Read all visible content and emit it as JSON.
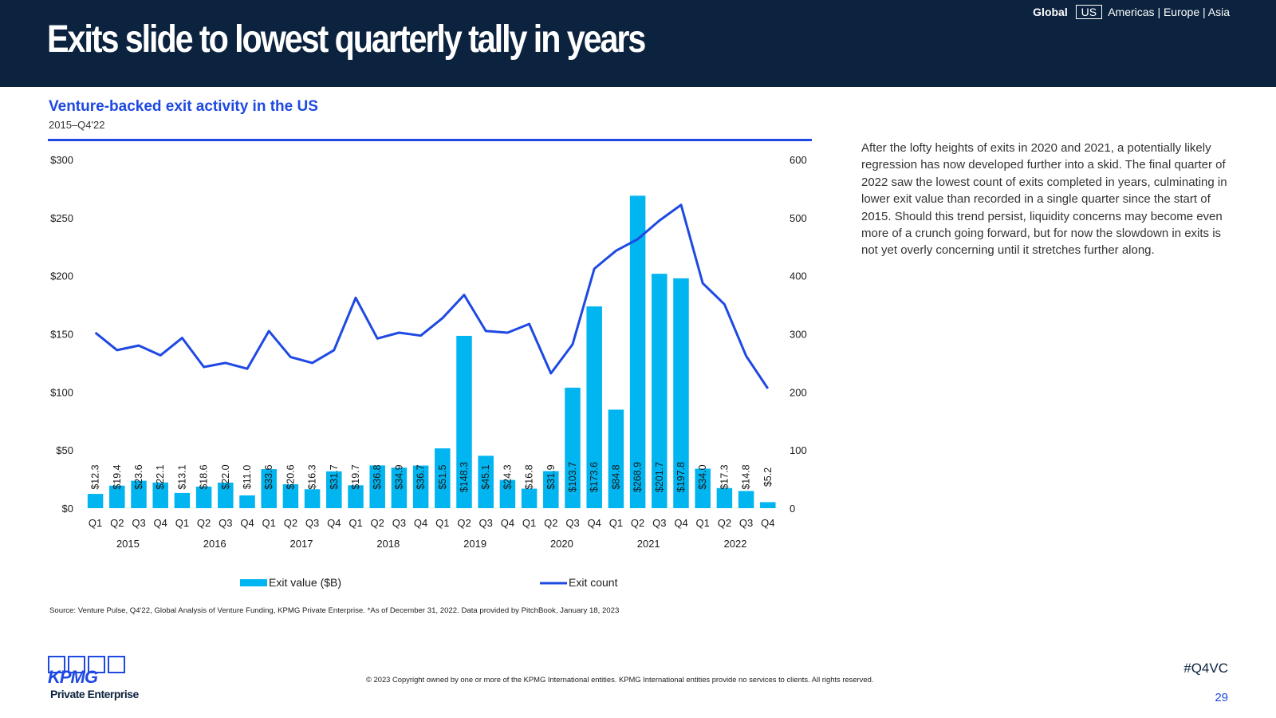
{
  "header": {
    "title": "Exits slide to lowest quarterly tally in years",
    "regions": {
      "global": "Global",
      "us": "US",
      "others": "Americas | Europe | Asia"
    }
  },
  "chart_meta": {
    "title": "Venture-backed exit activity in the US",
    "subtitle": "2015–Q4'22"
  },
  "side_text": "After the lofty heights of exits in 2020 and 2021, a potentially likely regression has now developed further into a skid. The final quarter of 2022 saw the lowest count of exits completed in years, culminating in lower exit value than recorded in a single quarter since the start of 2015. Should this trend persist, liquidity concerns may become even more of a crunch going forward, but for now the slowdown in exits is not yet overly concerning until it stretches further along.",
  "source": "Source: Venture Pulse, Q4'22, Global Analysis of Venture Funding, KPMG Private Enterprise. *As of December 31, 2022. Data provided by PitchBook, January 18, 2023",
  "footer": {
    "logo_word": "KPMG",
    "logo_sub": "Private Enterprise",
    "copyright": "© 2023 Copyright owned by one or more of the KPMG International entities. KPMG International entities provide no services to clients. All rights reserved.",
    "hashtag": "#Q4VC",
    "page": "29"
  },
  "colors": {
    "bar": "#00b5f0",
    "line": "#1e49e2",
    "header_bg": "#0c233f"
  },
  "chart_data": {
    "type": "bar",
    "categories": [
      "Q1",
      "Q2",
      "Q3",
      "Q4",
      "Q1",
      "Q2",
      "Q3",
      "Q4",
      "Q1",
      "Q2",
      "Q3",
      "Q4",
      "Q1",
      "Q2",
      "Q3",
      "Q4",
      "Q1",
      "Q2",
      "Q3",
      "Q4",
      "Q1",
      "Q2",
      "Q3",
      "Q4",
      "Q1",
      "Q2",
      "Q3",
      "Q4",
      "Q1",
      "Q2",
      "Q3",
      "Q4"
    ],
    "year_groups": [
      "2015",
      "2016",
      "2017",
      "2018",
      "2019",
      "2020",
      "2021",
      "2022"
    ],
    "series": [
      {
        "name": "Exit value ($B)",
        "type": "bar",
        "axis": "left",
        "values": [
          12.3,
          19.4,
          23.6,
          22.1,
          13.1,
          18.6,
          22.0,
          11.0,
          33.6,
          20.6,
          16.3,
          31.7,
          19.7,
          36.8,
          34.9,
          36.7,
          51.5,
          148.3,
          45.1,
          24.3,
          16.8,
          31.9,
          103.7,
          173.6,
          84.8,
          268.9,
          201.7,
          197.8,
          34.0,
          17.3,
          14.8,
          5.2
        ],
        "labels": [
          "$12.3",
          "$19.4",
          "$23.6",
          "$22.1",
          "$13.1",
          "$18.6",
          "$22.0",
          "$11.0",
          "$33.6",
          "$20.6",
          "$16.3",
          "$31.7",
          "$19.7",
          "$36.8",
          "$34.9",
          "$36.7",
          "$51.5",
          "$148.3",
          "$45.1",
          "$24.3",
          "$16.8",
          "$31.9",
          "$103.7",
          "$173.6",
          "$84.8",
          "$268.9",
          "$201.7",
          "$197.8",
          "$34.0",
          "$17.3",
          "$14.8",
          "$5.2"
        ]
      },
      {
        "name": "Exit count",
        "type": "line",
        "axis": "right",
        "values": [
          302,
          272,
          280,
          263,
          293,
          243,
          250,
          240,
          305,
          260,
          250,
          272,
          362,
          292,
          302,
          297,
          327,
          367,
          305,
          302,
          317,
          232,
          282,
          412,
          443,
          463,
          495,
          522,
          387,
          351,
          262,
          206
        ]
      }
    ],
    "y_left": {
      "min": 0,
      "max": 300,
      "ticks": [
        0,
        50,
        100,
        150,
        200,
        250,
        300
      ],
      "tick_labels": [
        "$0",
        "$50",
        "$100",
        "$150",
        "$200",
        "$250",
        "$300"
      ]
    },
    "y_right": {
      "min": 0,
      "max": 600,
      "ticks": [
        0,
        100,
        200,
        300,
        400,
        500,
        600
      ],
      "tick_labels": [
        "0",
        "100",
        "200",
        "300",
        "400",
        "500",
        "600"
      ]
    },
    "legend": {
      "position": "bottom",
      "items": [
        "Exit value ($B)",
        "Exit count"
      ]
    },
    "grid": false
  }
}
